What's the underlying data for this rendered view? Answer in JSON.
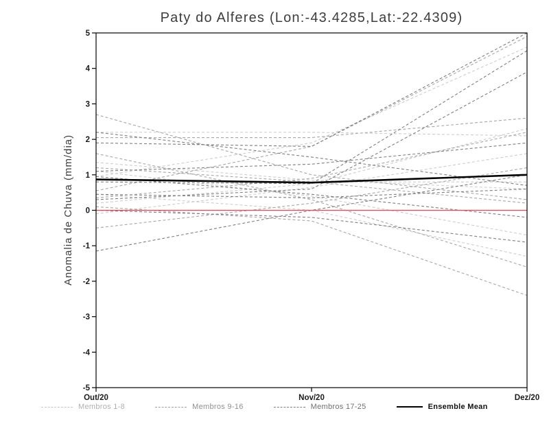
{
  "chart_data": {
    "type": "line",
    "title": "Paty do Alferes (Lon:-43.4285,Lat:-22.4309)",
    "ylabel": "Anomalia de Chuva (mm/dia)",
    "categories": [
      "Out/20",
      "Nov/20",
      "Dez/20"
    ],
    "ylim": [
      -5,
      5
    ],
    "yticks": [
      -5,
      -4,
      -3,
      -2,
      -1,
      0,
      1,
      2,
      3,
      4,
      5
    ],
    "grid": false,
    "zero_line": {
      "value": 0,
      "color": "#ee4444"
    },
    "groups": [
      {
        "name": "Membros 1-8",
        "color": "#cccccc"
      },
      {
        "name": "Membros 9-16",
        "color": "#a6a6a6"
      },
      {
        "name": "Membros 17-25",
        "color": "#7e7e7e"
      }
    ],
    "members": [
      {
        "id": 1,
        "group": 0,
        "values": [
          2.2,
          2.2,
          2.1
        ]
      },
      {
        "id": 2,
        "group": 0,
        "values": [
          1.35,
          0.85,
          0.6
        ]
      },
      {
        "id": 3,
        "group": 0,
        "values": [
          0.95,
          1.9,
          4.6
        ]
      },
      {
        "id": 4,
        "group": 0,
        "values": [
          0.45,
          0.0,
          -1.3
        ]
      },
      {
        "id": 5,
        "group": 0,
        "values": [
          0.2,
          0.75,
          2.3
        ]
      },
      {
        "id": 6,
        "group": 0,
        "values": [
          1.1,
          0.4,
          -0.7
        ]
      },
      {
        "id": 7,
        "group": 0,
        "values": [
          -0.1,
          0.65,
          1.6
        ]
      },
      {
        "id": 8,
        "group": 0,
        "values": [
          0.85,
          0.8,
          0.8
        ]
      },
      {
        "id": 9,
        "group": 1,
        "values": [
          2.7,
          1.0,
          0.3
        ]
      },
      {
        "id": 10,
        "group": 1,
        "values": [
          2.05,
          2.05,
          2.6
        ]
      },
      {
        "id": 11,
        "group": 1,
        "values": [
          1.6,
          0.3,
          -1.6
        ]
      },
      {
        "id": 12,
        "group": 1,
        "values": [
          0.55,
          1.8,
          4.9
        ]
      },
      {
        "id": 13,
        "group": 1,
        "values": [
          0.1,
          -0.3,
          -2.4
        ]
      },
      {
        "id": 14,
        "group": 1,
        "values": [
          1.2,
          0.8,
          0.2
        ]
      },
      {
        "id": 15,
        "group": 1,
        "values": [
          -0.5,
          0.2,
          1.2
        ]
      },
      {
        "id": 16,
        "group": 1,
        "values": [
          0.35,
          0.9,
          2.2
        ]
      },
      {
        "id": 17,
        "group": 2,
        "values": [
          1.9,
          1.8,
          5.0
        ]
      },
      {
        "id": 18,
        "group": 2,
        "values": [
          0.8,
          0.75,
          4.5
        ]
      },
      {
        "id": 19,
        "group": 2,
        "values": [
          -1.15,
          0.0,
          1.0
        ]
      },
      {
        "id": 20,
        "group": 2,
        "values": [
          0.95,
          0.45,
          -0.2
        ]
      },
      {
        "id": 21,
        "group": 2,
        "values": [
          2.2,
          1.5,
          0.7
        ]
      },
      {
        "id": 22,
        "group": 2,
        "values": [
          0.3,
          0.6,
          3.9
        ]
      },
      {
        "id": 23,
        "group": 2,
        "values": [
          1.1,
          1.3,
          1.9
        ]
      },
      {
        "id": 24,
        "group": 2,
        "values": [
          0.0,
          -0.2,
          -0.9
        ]
      },
      {
        "id": 25,
        "group": 2,
        "values": [
          0.45,
          0.35,
          0.6
        ]
      }
    ],
    "ensemble_mean": {
      "name": "Ensemble Mean",
      "color": "#000000",
      "values": [
        0.87,
        0.78,
        1.0
      ]
    }
  },
  "legend": {
    "items": [
      {
        "label": "Membros 1-8",
        "style": "dashed",
        "color": "#c6c6c6",
        "label_color": "#b0b0b0"
      },
      {
        "label": "Membros 9-16",
        "style": "dashed",
        "color": "#a0a0a0",
        "label_color": "#8f8f8f"
      },
      {
        "label": "Membros 17-25",
        "style": "dashed",
        "color": "#7e7e7e",
        "label_color": "#6f6f6f"
      },
      {
        "label": "Ensemble Mean",
        "style": "solid",
        "color": "#000000",
        "label_color": "#111111"
      }
    ]
  }
}
